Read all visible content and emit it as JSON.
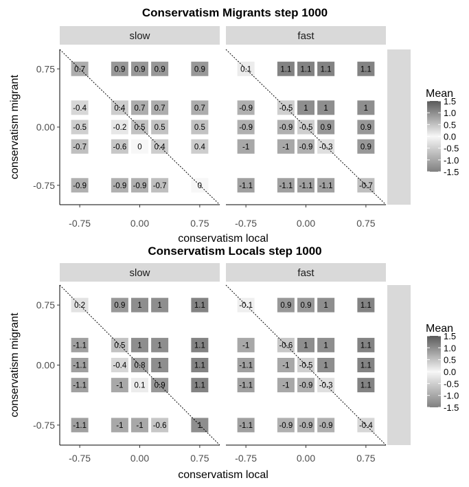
{
  "chart_data": [
    {
      "type": "heatmap",
      "title": "Conservatism Migrants step 1000",
      "xlabel": "conservatism local",
      "ylabel": "conservatism migrant",
      "x_ticks": [
        "-0.75",
        "0.00",
        "0.75"
      ],
      "y_ticks": [
        "0.75",
        "0.00",
        "-0.75"
      ],
      "legend_title": "Mean",
      "legend_ticks": [
        "1.5",
        "1.0",
        "0.5",
        "0.0",
        "-0.5",
        "-1.0",
        "-1.5"
      ],
      "color_range": [
        -1.5,
        1.5
      ],
      "colors": {
        "high": "#595959",
        "mid": "#f7f7f7",
        "low": "#808080"
      },
      "panels": [
        {
          "label": "slow",
          "cells": [
            {
              "x": -0.75,
              "y": 0.75,
              "label": "0.7",
              "value": 0.7
            },
            {
              "x": -0.25,
              "y": 0.75,
              "label": "0.9",
              "value": 0.9
            },
            {
              "x": 0,
              "y": 0.75,
              "label": "0.9",
              "value": 0.9
            },
            {
              "x": 0.25,
              "y": 0.75,
              "label": "0.9",
              "value": 0.9
            },
            {
              "x": 0.75,
              "y": 0.75,
              "label": "0.9",
              "value": 0.9
            },
            {
              "x": -0.75,
              "y": 0.25,
              "label": "-0.4",
              "value": -0.4
            },
            {
              "x": -0.25,
              "y": 0.25,
              "label": "0.4",
              "value": 0.4
            },
            {
              "x": 0,
              "y": 0.25,
              "label": "0.7",
              "value": 0.7
            },
            {
              "x": 0.25,
              "y": 0.25,
              "label": "0.7",
              "value": 0.7
            },
            {
              "x": 0.75,
              "y": 0.25,
              "label": "0.7",
              "value": 0.7
            },
            {
              "x": -0.75,
              "y": 0,
              "label": "-0.5",
              "value": -0.5
            },
            {
              "x": -0.25,
              "y": 0,
              "label": "-0.2",
              "value": -0.2
            },
            {
              "x": 0,
              "y": 0,
              "label": "0.5",
              "value": 0.5
            },
            {
              "x": 0.25,
              "y": 0,
              "label": "0.5",
              "value": 0.5
            },
            {
              "x": 0.75,
              "y": 0,
              "label": "0.5",
              "value": 0.5
            },
            {
              "x": -0.75,
              "y": -0.25,
              "label": "-0.7",
              "value": -0.7
            },
            {
              "x": -0.25,
              "y": -0.25,
              "label": "-0.6",
              "value": -0.6
            },
            {
              "x": 0,
              "y": -0.25,
              "label": "0",
              "value": 0
            },
            {
              "x": 0.25,
              "y": -0.25,
              "label": "0.4",
              "value": 0.4
            },
            {
              "x": 0.75,
              "y": -0.25,
              "label": "0.4",
              "value": 0.4
            },
            {
              "x": -0.75,
              "y": -0.75,
              "label": "-0.9",
              "value": -0.9
            },
            {
              "x": -0.25,
              "y": -0.75,
              "label": "-0.9",
              "value": -0.9
            },
            {
              "x": 0,
              "y": -0.75,
              "label": "-0.9",
              "value": -0.9
            },
            {
              "x": 0.25,
              "y": -0.75,
              "label": "-0.7",
              "value": -0.7
            },
            {
              "x": 0.75,
              "y": -0.75,
              "label": "0",
              "value": 0
            }
          ]
        },
        {
          "label": "fast",
          "cells": [
            {
              "x": -0.75,
              "y": 0.75,
              "label": "0.1",
              "value": 0.1
            },
            {
              "x": -0.25,
              "y": 0.75,
              "label": "1.1",
              "value": 1.1
            },
            {
              "x": 0,
              "y": 0.75,
              "label": "1.1",
              "value": 1.1
            },
            {
              "x": 0.25,
              "y": 0.75,
              "label": "1.1",
              "value": 1.1
            },
            {
              "x": 0.75,
              "y": 0.75,
              "label": "1.1",
              "value": 1.1
            },
            {
              "x": -0.75,
              "y": 0.25,
              "label": "-0.9",
              "value": -0.9
            },
            {
              "x": -0.25,
              "y": 0.25,
              "label": "-0.5",
              "value": -0.5
            },
            {
              "x": 0,
              "y": 0.25,
              "label": "1",
              "value": 1
            },
            {
              "x": 0.25,
              "y": 0.25,
              "label": "1",
              "value": 1
            },
            {
              "x": 0.75,
              "y": 0.25,
              "label": "1",
              "value": 1
            },
            {
              "x": -0.75,
              "y": 0,
              "label": "-0.9",
              "value": -0.9
            },
            {
              "x": -0.25,
              "y": 0,
              "label": "-0.9",
              "value": -0.9
            },
            {
              "x": 0,
              "y": 0,
              "label": "-0.5",
              "value": -0.5
            },
            {
              "x": 0.25,
              "y": 0,
              "label": "0.9",
              "value": 0.9
            },
            {
              "x": 0.75,
              "y": 0,
              "label": "0.9",
              "value": 0.9
            },
            {
              "x": -0.75,
              "y": -0.25,
              "label": "-1",
              "value": -1
            },
            {
              "x": -0.25,
              "y": -0.25,
              "label": "-1",
              "value": -1
            },
            {
              "x": 0,
              "y": -0.25,
              "label": "-0.9",
              "value": -0.9
            },
            {
              "x": 0.25,
              "y": -0.25,
              "label": "-0.3",
              "value": -0.3
            },
            {
              "x": 0.75,
              "y": -0.25,
              "label": "0.9",
              "value": 0.9
            },
            {
              "x": -0.75,
              "y": -0.75,
              "label": "-1.1",
              "value": -1.1
            },
            {
              "x": -0.25,
              "y": -0.75,
              "label": "-1.1",
              "value": -1.1
            },
            {
              "x": 0,
              "y": -0.75,
              "label": "-1.1",
              "value": -1.1
            },
            {
              "x": 0.25,
              "y": -0.75,
              "label": "-1.1",
              "value": -1.1
            },
            {
              "x": 0.75,
              "y": -0.75,
              "label": "-0.7",
              "value": -0.7
            }
          ]
        }
      ]
    },
    {
      "type": "heatmap",
      "title": "Conservatism Locals step 1000",
      "xlabel": "conservatism local",
      "ylabel": "conservatism migrant",
      "x_ticks": [
        "-0.75",
        "0.00",
        "0.75"
      ],
      "y_ticks": [
        "0.75",
        "0.00",
        "-0.75"
      ],
      "legend_title": "Mean",
      "legend_ticks": [
        "1.5",
        "1.0",
        "0.5",
        "0.0",
        "-0.5",
        "-1.0",
        "-1.5"
      ],
      "color_range": [
        -1.5,
        1.5
      ],
      "colors": {
        "high": "#595959",
        "mid": "#f7f7f7",
        "low": "#808080"
      },
      "panels": [
        {
          "label": "slow",
          "cells": [
            {
              "x": -0.75,
              "y": 0.75,
              "label": "0.2",
              "value": 0.2
            },
            {
              "x": -0.25,
              "y": 0.75,
              "label": "0.9",
              "value": 0.9
            },
            {
              "x": 0,
              "y": 0.75,
              "label": "1",
              "value": 1
            },
            {
              "x": 0.25,
              "y": 0.75,
              "label": "1",
              "value": 1
            },
            {
              "x": 0.75,
              "y": 0.75,
              "label": "1.1",
              "value": 1.1
            },
            {
              "x": -0.75,
              "y": 0.25,
              "label": "-1.1",
              "value": -1.1
            },
            {
              "x": -0.25,
              "y": 0.25,
              "label": "0.5",
              "value": 0.5
            },
            {
              "x": 0,
              "y": 0.25,
              "label": "1",
              "value": 1
            },
            {
              "x": 0.25,
              "y": 0.25,
              "label": "1",
              "value": 1
            },
            {
              "x": 0.75,
              "y": 0.25,
              "label": "1.1",
              "value": 1.1
            },
            {
              "x": -0.75,
              "y": 0,
              "label": "-1.1",
              "value": -1.1
            },
            {
              "x": -0.25,
              "y": 0,
              "label": "-0.4",
              "value": -0.4
            },
            {
              "x": 0,
              "y": 0,
              "label": "0.8",
              "value": 0.8
            },
            {
              "x": 0.25,
              "y": 0,
              "label": "1",
              "value": 1
            },
            {
              "x": 0.75,
              "y": 0,
              "label": "1.1",
              "value": 1.1
            },
            {
              "x": -0.75,
              "y": -0.25,
              "label": "-1.1",
              "value": -1.1
            },
            {
              "x": -0.25,
              "y": -0.25,
              "label": "-1",
              "value": -1
            },
            {
              "x": 0,
              "y": -0.25,
              "label": "0.1",
              "value": 0.1
            },
            {
              "x": 0.25,
              "y": -0.25,
              "label": "0.9",
              "value": 0.9
            },
            {
              "x": 0.75,
              "y": -0.25,
              "label": "1.1",
              "value": 1.1
            },
            {
              "x": -0.75,
              "y": -0.75,
              "label": "-1.1",
              "value": -1.1
            },
            {
              "x": -0.25,
              "y": -0.75,
              "label": "-1",
              "value": -1
            },
            {
              "x": 0,
              "y": -0.75,
              "label": "-1",
              "value": -1
            },
            {
              "x": 0.25,
              "y": -0.75,
              "label": "-0.6",
              "value": -0.6
            },
            {
              "x": 0.75,
              "y": -0.75,
              "label": "1",
              "value": 1
            }
          ]
        },
        {
          "label": "fast",
          "cells": [
            {
              "x": -0.75,
              "y": 0.75,
              "label": "-0.1",
              "value": -0.1
            },
            {
              "x": -0.25,
              "y": 0.75,
              "label": "0.9",
              "value": 0.9
            },
            {
              "x": 0,
              "y": 0.75,
              "label": "0.9",
              "value": 0.9
            },
            {
              "x": 0.25,
              "y": 0.75,
              "label": "1",
              "value": 1
            },
            {
              "x": 0.75,
              "y": 0.75,
              "label": "1.1",
              "value": 1.1
            },
            {
              "x": -0.75,
              "y": 0.25,
              "label": "-1",
              "value": -1
            },
            {
              "x": -0.25,
              "y": 0.25,
              "label": "-0.6",
              "value": -0.6
            },
            {
              "x": 0,
              "y": 0.25,
              "label": "1",
              "value": 1
            },
            {
              "x": 0.25,
              "y": 0.25,
              "label": "1",
              "value": 1
            },
            {
              "x": 0.75,
              "y": 0.25,
              "label": "1.1",
              "value": 1.1
            },
            {
              "x": -0.75,
              "y": 0,
              "label": "-1.1",
              "value": -1.1
            },
            {
              "x": -0.25,
              "y": 0,
              "label": "-1",
              "value": -1
            },
            {
              "x": 0,
              "y": 0,
              "label": "-0.5",
              "value": -0.5
            },
            {
              "x": 0.25,
              "y": 0,
              "label": "1",
              "value": 1
            },
            {
              "x": 0.75,
              "y": 0,
              "label": "1.1",
              "value": 1.1
            },
            {
              "x": -0.75,
              "y": -0.25,
              "label": "-1.1",
              "value": -1.1
            },
            {
              "x": -0.25,
              "y": -0.25,
              "label": "-1",
              "value": -1
            },
            {
              "x": 0,
              "y": -0.25,
              "label": "-0.9",
              "value": -0.9
            },
            {
              "x": 0.25,
              "y": -0.25,
              "label": "-0.3",
              "value": -0.3
            },
            {
              "x": 0.75,
              "y": -0.25,
              "label": "1.1",
              "value": 1.1
            },
            {
              "x": -0.75,
              "y": -0.75,
              "label": "-1.1",
              "value": -1.1
            },
            {
              "x": -0.25,
              "y": -0.75,
              "label": "-0.9",
              "value": -0.9
            },
            {
              "x": 0,
              "y": -0.75,
              "label": "-0.9",
              "value": -0.9
            },
            {
              "x": 0.25,
              "y": -0.75,
              "label": "-0.9",
              "value": -0.9
            },
            {
              "x": 0.75,
              "y": -0.75,
              "label": "-0.4",
              "value": -0.4
            }
          ]
        }
      ]
    }
  ]
}
